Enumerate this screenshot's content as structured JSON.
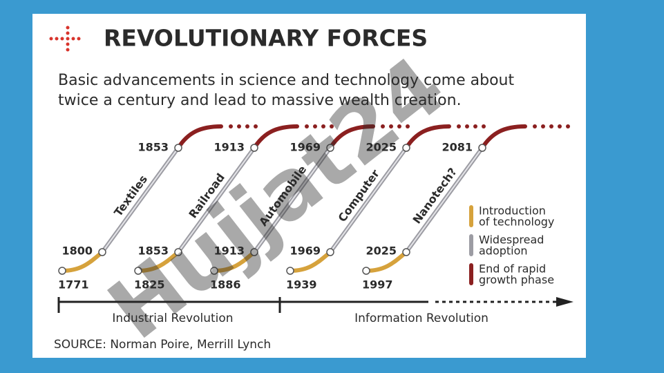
{
  "header": {
    "title": "REVOLUTIONARY FORCES",
    "subtitle_lines": [
      "Basic advancements in science and technology come about",
      "twice a century and lead to massive wealth creation."
    ]
  },
  "waves": [
    {
      "technology": "Textiles",
      "start": "1771",
      "adoption_start": "1800",
      "adoption_end": "1853"
    },
    {
      "technology": "Railroad",
      "start": "1825",
      "adoption_start": "1853",
      "adoption_end": "1913"
    },
    {
      "technology": "Automobile",
      "start": "1886",
      "adoption_start": "1913",
      "adoption_end": "1969"
    },
    {
      "technology": "Computer",
      "start": "1939",
      "adoption_start": "1969",
      "adoption_end": "2025"
    },
    {
      "technology": "Nanotech?",
      "start": "1997",
      "adoption_start": "2025",
      "adoption_end": "2081"
    }
  ],
  "legend": [
    {
      "lines": [
        "Introduction",
        "of technology"
      ]
    },
    {
      "lines": [
        "Widespread",
        "adoption"
      ]
    },
    {
      "lines": [
        "End of rapid",
        "growth phase"
      ]
    }
  ],
  "eras": [
    "Industrial Revolution",
    "Information Revolution"
  ],
  "source": "SOURCE: Norman Poire, Merrill Lynch",
  "watermark": "Hujjat24"
}
